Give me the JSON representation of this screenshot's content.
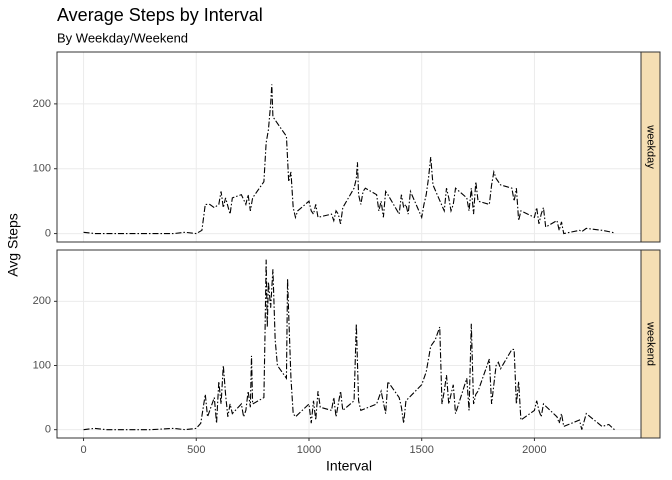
{
  "chart_data": [
    {
      "type": "line",
      "title": "Average Steps by Interval",
      "subtitle": "By Weekday/Weekend",
      "y_label": "Avg Steps",
      "facet": "weekday",
      "color": "#000000",
      "grid": true,
      "x": [
        0,
        50,
        100,
        200,
        300,
        400,
        450,
        500,
        525,
        540,
        560,
        580,
        600,
        610,
        620,
        630,
        650,
        660,
        700,
        720,
        730,
        740,
        750,
        760,
        800,
        810,
        820,
        830,
        835,
        840,
        850,
        900,
        910,
        920,
        930,
        940,
        950,
        1000,
        1010,
        1020,
        1030,
        1040,
        1100,
        1110,
        1120,
        1130,
        1140,
        1150,
        1200,
        1210,
        1215,
        1220,
        1230,
        1240,
        1250,
        1300,
        1310,
        1320,
        1330,
        1340,
        1350,
        1400,
        1410,
        1420,
        1430,
        1440,
        1450,
        1500,
        1510,
        1520,
        1530,
        1540,
        1550,
        1600,
        1610,
        1620,
        1630,
        1640,
        1650,
        1700,
        1710,
        1720,
        1730,
        1740,
        1750,
        1800,
        1810,
        1820,
        1830,
        1840,
        1850,
        1900,
        1910,
        1920,
        1930,
        1940,
        2000,
        2010,
        2020,
        2030,
        2040,
        2050,
        2100,
        2110,
        2120,
        2130,
        2200,
        2210,
        2230,
        2300,
        2330,
        2355
      ],
      "values": [
        2,
        0,
        0,
        0,
        0,
        0,
        2,
        0,
        5,
        45,
        45,
        40,
        45,
        65,
        40,
        55,
        30,
        55,
        60,
        45,
        60,
        35,
        55,
        60,
        80,
        140,
        160,
        200,
        230,
        180,
        175,
        150,
        80,
        95,
        40,
        25,
        35,
        50,
        35,
        30,
        45,
        25,
        30,
        20,
        35,
        30,
        15,
        40,
        70,
        85,
        110,
        60,
        45,
        65,
        70,
        60,
        35,
        50,
        25,
        65,
        60,
        30,
        60,
        40,
        45,
        30,
        65,
        25,
        45,
        60,
        85,
        118,
        75,
        35,
        70,
        55,
        35,
        45,
        70,
        55,
        35,
        70,
        30,
        80,
        50,
        45,
        75,
        95,
        85,
        80,
        75,
        70,
        50,
        70,
        20,
        35,
        25,
        40,
        15,
        30,
        40,
        10,
        20,
        5,
        18,
        0,
        5,
        3,
        8,
        5,
        3,
        1
      ],
      "xlim": [
        -117.75,
        2472.75
      ],
      "ylim": [
        -13,
        280
      ],
      "xticks": [
        0,
        500,
        1000,
        1500,
        2000
      ],
      "yticks": [
        0,
        100,
        200
      ]
    },
    {
      "type": "line",
      "x_label": "Interval",
      "facet": "weekend",
      "color": "#000000",
      "grid": true,
      "x": [
        0,
        50,
        100,
        200,
        300,
        400,
        450,
        500,
        520,
        540,
        550,
        560,
        580,
        590,
        600,
        610,
        620,
        630,
        640,
        650,
        660,
        700,
        710,
        720,
        730,
        740,
        745,
        750,
        800,
        805,
        810,
        815,
        820,
        830,
        840,
        850,
        860,
        900,
        905,
        910,
        920,
        930,
        940,
        1000,
        1010,
        1020,
        1030,
        1040,
        1050,
        1100,
        1110,
        1120,
        1130,
        1140,
        1150,
        1200,
        1210,
        1220,
        1230,
        1300,
        1320,
        1340,
        1350,
        1400,
        1410,
        1420,
        1430,
        1500,
        1520,
        1540,
        1560,
        1580,
        1590,
        1600,
        1610,
        1620,
        1640,
        1650,
        1700,
        1710,
        1720,
        1730,
        1740,
        1750,
        1800,
        1810,
        1820,
        1830,
        1840,
        1850,
        1900,
        1910,
        1920,
        1930,
        1940,
        2000,
        2010,
        2020,
        2030,
        2040,
        2100,
        2110,
        2120,
        2130,
        2200,
        2210,
        2230,
        2300,
        2330,
        2355
      ],
      "values": [
        0,
        2,
        0,
        0,
        0,
        2,
        0,
        2,
        10,
        55,
        20,
        30,
        50,
        10,
        75,
        40,
        100,
        55,
        20,
        40,
        25,
        40,
        20,
        30,
        60,
        35,
        115,
        40,
        50,
        150,
        265,
        160,
        230,
        190,
        250,
        140,
        100,
        80,
        235,
        180,
        80,
        25,
        20,
        40,
        10,
        45,
        15,
        60,
        35,
        30,
        50,
        20,
        40,
        60,
        30,
        45,
        165,
        45,
        30,
        40,
        60,
        25,
        75,
        50,
        35,
        10,
        45,
        70,
        90,
        130,
        140,
        160,
        40,
        60,
        85,
        40,
        70,
        25,
        80,
        30,
        165,
        40,
        55,
        60,
        110,
        40,
        70,
        100,
        105,
        95,
        125,
        125,
        40,
        75,
        15,
        30,
        45,
        30,
        20,
        40,
        20,
        10,
        25,
        5,
        15,
        0,
        25,
        5,
        8,
        0
      ],
      "xlim": [
        -117.75,
        2472.75
      ],
      "ylim": [
        -13,
        280
      ],
      "xticks": [
        0,
        500,
        1000,
        1500,
        2000
      ],
      "yticks": [
        0,
        100,
        200
      ]
    }
  ]
}
